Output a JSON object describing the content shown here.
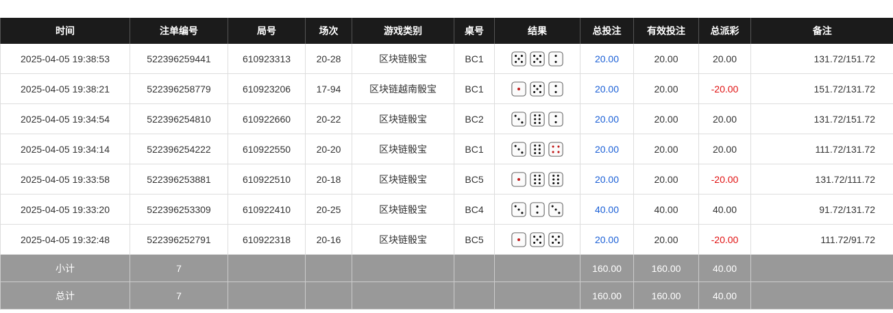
{
  "headers": [
    "时间",
    "注单编号",
    "局号",
    "场次",
    "游戏类别",
    "桌号",
    "结果",
    "总投注",
    "有效投注",
    "总派彩",
    "备注"
  ],
  "rows": [
    {
      "time": "2025-04-05 19:38:53",
      "bet_id": "522396259441",
      "round": "610923313",
      "session": "20-28",
      "game": "区块链骰宝",
      "table": "BC1",
      "dice": [
        5,
        5,
        2
      ],
      "total_bet": "20.00",
      "valid_bet": "20.00",
      "payout": "20.00",
      "payout_negative": false,
      "note": "131.72/151.72"
    },
    {
      "time": "2025-04-05 19:38:21",
      "bet_id": "522396258779",
      "round": "610923206",
      "session": "17-94",
      "game": "区块链越南骰宝",
      "table": "BC1",
      "dice": [
        1,
        5,
        2
      ],
      "total_bet": "20.00",
      "valid_bet": "20.00",
      "payout": "-20.00",
      "payout_negative": true,
      "note": "151.72/131.72"
    },
    {
      "time": "2025-04-05 19:34:54",
      "bet_id": "522396254810",
      "round": "610922660",
      "session": "20-22",
      "game": "区块链骰宝",
      "table": "BC2",
      "dice": [
        3,
        6,
        2
      ],
      "total_bet": "20.00",
      "valid_bet": "20.00",
      "payout": "20.00",
      "payout_negative": false,
      "note": "131.72/151.72"
    },
    {
      "time": "2025-04-05 19:34:14",
      "bet_id": "522396254222",
      "round": "610922550",
      "session": "20-20",
      "game": "区块链骰宝",
      "table": "BC1",
      "dice": [
        3,
        6,
        4
      ],
      "total_bet": "20.00",
      "valid_bet": "20.00",
      "payout": "20.00",
      "payout_negative": false,
      "note": "111.72/131.72"
    },
    {
      "time": "2025-04-05 19:33:58",
      "bet_id": "522396253881",
      "round": "610922510",
      "session": "20-18",
      "game": "区块链骰宝",
      "table": "BC5",
      "dice": [
        1,
        6,
        6
      ],
      "total_bet": "20.00",
      "valid_bet": "20.00",
      "payout": "-20.00",
      "payout_negative": true,
      "note": "131.72/111.72"
    },
    {
      "time": "2025-04-05 19:33:20",
      "bet_id": "522396253309",
      "round": "610922410",
      "session": "20-25",
      "game": "区块链骰宝",
      "table": "BC4",
      "dice": [
        3,
        2,
        3
      ],
      "total_bet": "40.00",
      "valid_bet": "40.00",
      "payout": "40.00",
      "payout_negative": false,
      "note": "91.72/131.72"
    },
    {
      "time": "2025-04-05 19:32:48",
      "bet_id": "522396252791",
      "round": "610922318",
      "session": "20-16",
      "game": "区块链骰宝",
      "table": "BC5",
      "dice": [
        1,
        5,
        5
      ],
      "total_bet": "20.00",
      "valid_bet": "20.00",
      "payout": "-20.00",
      "payout_negative": true,
      "note": "111.72/91.72"
    }
  ],
  "subtotal": {
    "label": "小计",
    "count": "7",
    "total_bet": "160.00",
    "valid_bet": "160.00",
    "payout": "40.00"
  },
  "total": {
    "label": "总计",
    "count": "7",
    "total_bet": "160.00",
    "valid_bet": "160.00",
    "payout": "40.00"
  },
  "colors": {
    "header_bg": "#1b1b1b",
    "bet_blue": "#1a5fd6",
    "loss_red": "#e01010",
    "pip_red": "#c01818",
    "summary_bg": "#999999"
  }
}
